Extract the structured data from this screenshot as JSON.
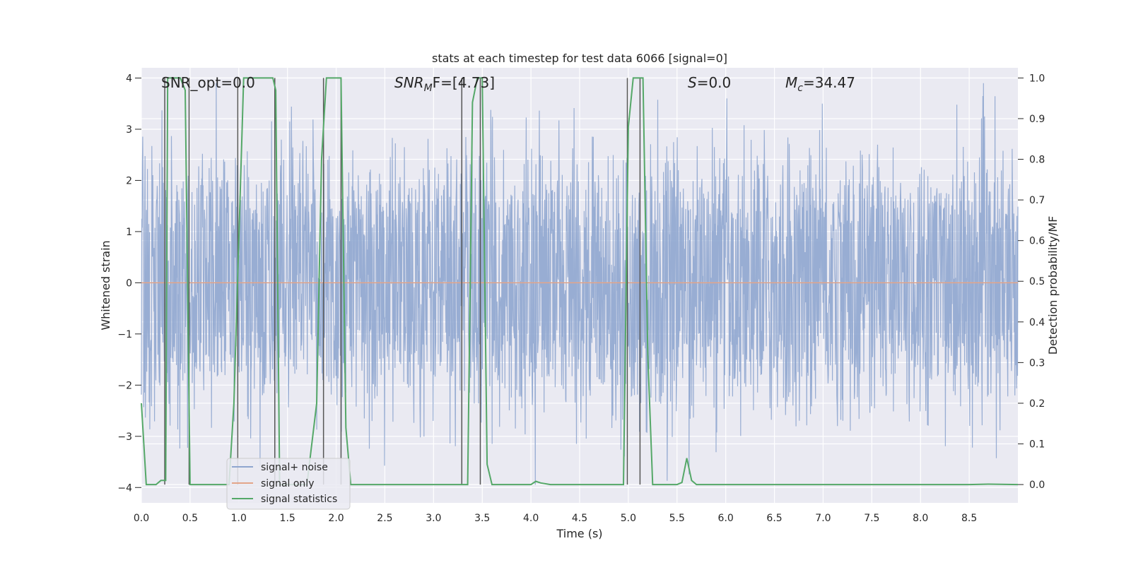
{
  "chart_data": {
    "type": "line",
    "title": "stats at each timestep for test data 6066 [signal=0]",
    "xlabel": "Time (s)",
    "ylabel_left": "Whitened strain",
    "ylabel_right": "Detection probability/MF",
    "xlim": [
      0.0,
      9.0
    ],
    "ylim_left": [
      -4.3,
      4.2
    ],
    "ylim_right": [
      -0.045,
      1.025
    ],
    "xticks": [
      "0.0",
      "0.5",
      "1.0",
      "1.5",
      "2.0",
      "2.5",
      "3.0",
      "3.5",
      "4.0",
      "4.5",
      "5.0",
      "5.5",
      "6.0",
      "6.5",
      "7.0",
      "7.5",
      "8.0",
      "8.5"
    ],
    "xtick_values": [
      0.0,
      0.5,
      1.0,
      1.5,
      2.0,
      2.5,
      3.0,
      3.5,
      4.0,
      4.5,
      5.0,
      5.5,
      6.0,
      6.5,
      7.0,
      7.5,
      8.0,
      8.5
    ],
    "yticks_left": [
      "4",
      "3",
      "2",
      "1",
      "0",
      "−1",
      "−2",
      "−3",
      "−4"
    ],
    "ytick_values_left": [
      4,
      3,
      2,
      1,
      0,
      -1,
      -2,
      -3,
      -4
    ],
    "yticks_right": [
      "1.0",
      "0.9",
      "0.8",
      "0.7",
      "0.6",
      "0.5",
      "0.4",
      "0.3",
      "0.2",
      "0.1",
      "0.0"
    ],
    "ytick_values_right": [
      1.0,
      0.9,
      0.8,
      0.7,
      0.6,
      0.5,
      0.4,
      0.3,
      0.2,
      0.1,
      0.0
    ],
    "annotations": {
      "snr_opt": "SNR_opt=0.0",
      "snr_mf_main": "SNR",
      "snr_mf_sub": "M",
      "snr_mf_rest": "F=[4.73]",
      "s_main": "S",
      "s_rest": "=0.0",
      "mc_main": "M",
      "mc_sub": "c",
      "mc_rest": "=34.47"
    },
    "legend": {
      "location": "lower-left",
      "entries": [
        "signal+ noise",
        "signal only",
        "signal statistics"
      ]
    },
    "series": [
      {
        "name": "signal+ noise",
        "axis": "left",
        "color": "#8fa6cf",
        "description": "whitened strain noise trace",
        "amplitude_envelope": 2.1,
        "max_peak": 3.9,
        "min_trough": -4.0
      },
      {
        "name": "signal only",
        "axis": "left",
        "color": "#e3a589",
        "x": [
          0.0,
          9.0
        ],
        "y": [
          0.0,
          0.0
        ]
      },
      {
        "name": "signal statistics",
        "axis": "right",
        "color": "#55a868",
        "x": [
          0.0,
          0.05,
          0.1,
          0.15,
          0.2,
          0.25,
          0.27,
          0.3,
          0.35,
          0.4,
          0.45,
          0.5,
          0.55,
          0.6,
          0.7,
          0.8,
          0.9,
          0.95,
          1.0,
          1.05,
          1.1,
          1.2,
          1.3,
          1.35,
          1.38,
          1.42,
          1.5,
          1.6,
          1.7,
          1.8,
          1.85,
          1.9,
          2.0,
          2.05,
          2.1,
          2.15,
          2.2,
          2.3,
          2.5,
          2.7,
          2.9,
          3.1,
          3.3,
          3.35,
          3.4,
          3.45,
          3.5,
          3.55,
          3.6,
          3.7,
          3.8,
          3.9,
          4.0,
          4.05,
          4.1,
          4.2,
          4.3,
          4.4,
          4.6,
          4.8,
          4.95,
          5.0,
          5.05,
          5.1,
          5.15,
          5.2,
          5.25,
          5.3,
          5.4,
          5.5,
          5.55,
          5.6,
          5.65,
          5.7,
          5.8,
          6.0,
          6.5,
          7.0,
          7.5,
          8.0,
          8.5,
          8.7,
          9.0
        ],
        "y": [
          0.2,
          0.0,
          0.0,
          0.0,
          0.01,
          0.01,
          1.0,
          1.0,
          1.0,
          1.0,
          0.97,
          0.0,
          0.0,
          0.0,
          0.0,
          0.0,
          0.0,
          0.2,
          0.6,
          1.0,
          1.0,
          1.0,
          1.0,
          1.0,
          0.97,
          0.0,
          0.0,
          0.0,
          0.0,
          0.2,
          0.8,
          1.0,
          1.0,
          1.0,
          0.14,
          0.0,
          0.0,
          0.0,
          0.0,
          0.0,
          0.0,
          0.0,
          0.0,
          0.0,
          0.94,
          1.0,
          1.0,
          0.05,
          0.0,
          0.0,
          0.0,
          0.0,
          0.0,
          0.008,
          0.004,
          0.0,
          0.0,
          0.0,
          0.0,
          0.0,
          0.0,
          0.88,
          1.0,
          1.0,
          1.0,
          0.32,
          0.0,
          0.0,
          0.0,
          0.0,
          0.005,
          0.065,
          0.01,
          0.0,
          0.0,
          0.0,
          0.0,
          0.0,
          0.0,
          0.0,
          0.0,
          0.001,
          0.0
        ]
      }
    ],
    "vertical_markers": [
      0.24,
      0.49,
      0.99,
      1.37,
      1.87,
      2.05,
      3.29,
      3.48,
      4.99,
      5.12
    ]
  }
}
